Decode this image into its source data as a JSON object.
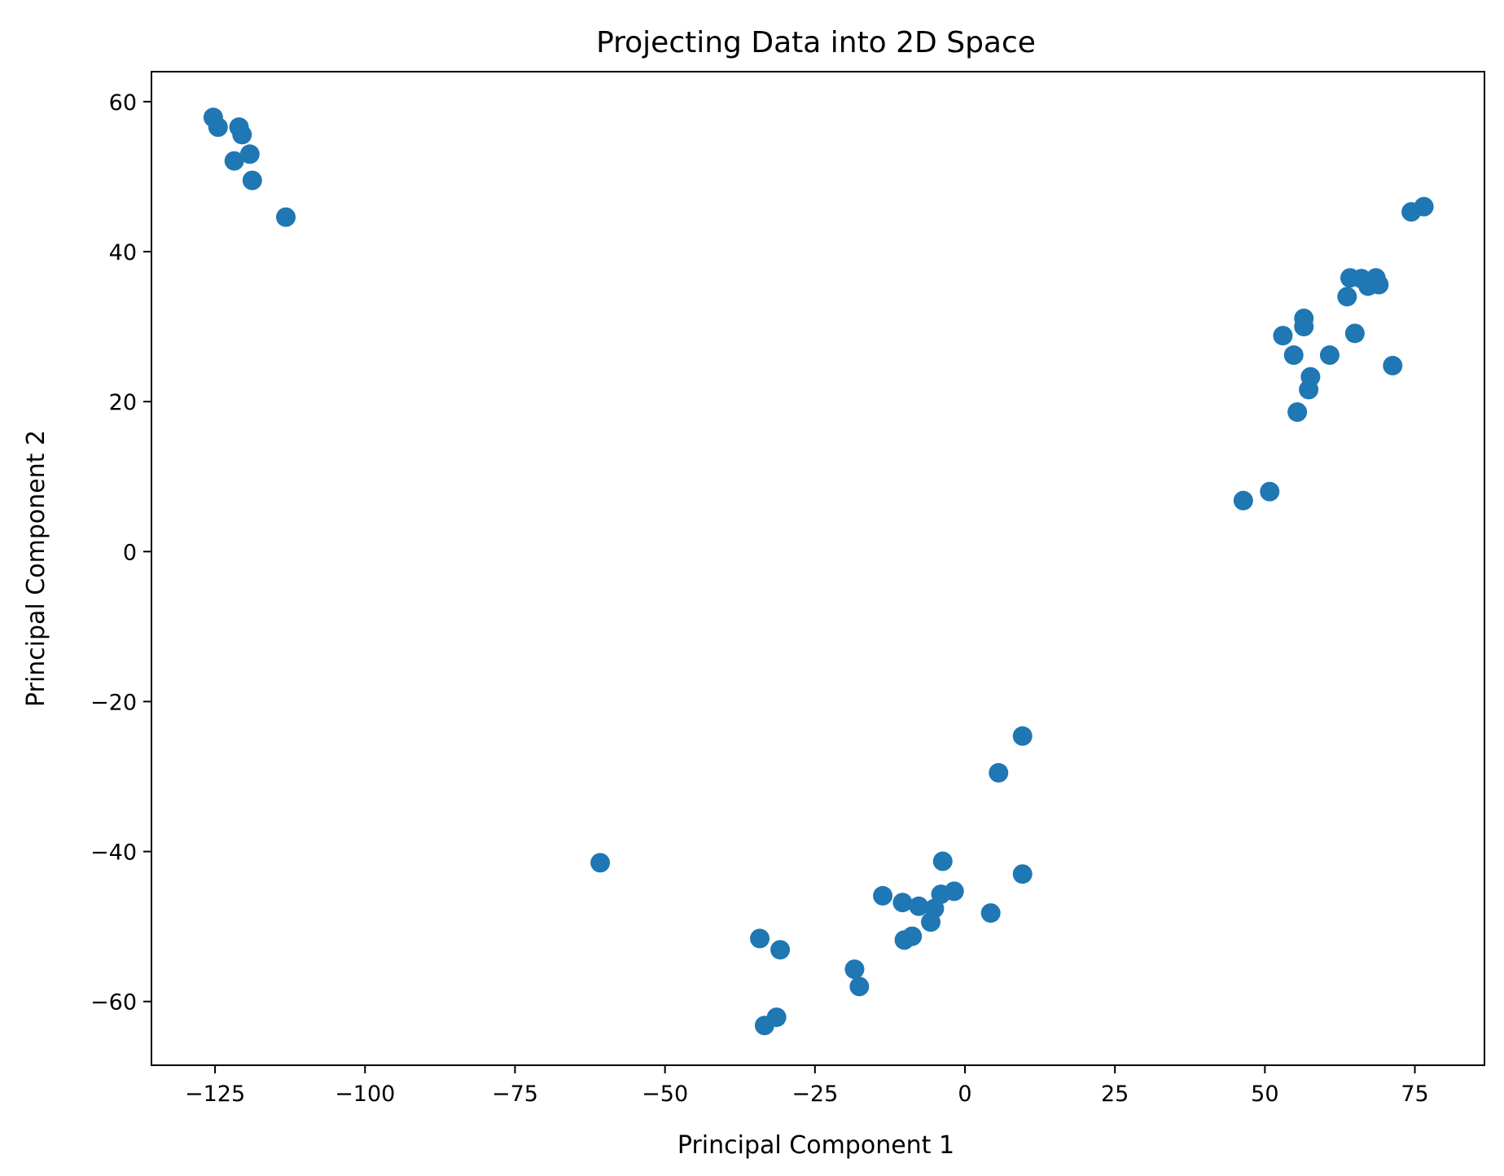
{
  "chart_data": {
    "type": "scatter",
    "title": "Projecting Data into 2D Space",
    "xlabel": "Principal Component 1",
    "ylabel": "Principal Component 2",
    "xlim": [
      -135.6,
      86.6
    ],
    "ylim": [
      -68.5,
      64.0
    ],
    "xticks": [
      -125,
      -100,
      -75,
      -50,
      -25,
      0,
      25,
      50,
      75
    ],
    "xtick_labels": [
      "−125",
      "−100",
      "−75",
      "−50",
      "−25",
      "0",
      "25",
      "50",
      "75"
    ],
    "yticks": [
      -60,
      -40,
      -20,
      0,
      20,
      40,
      60
    ],
    "ytick_labels": [
      "−60",
      "−40",
      "−20",
      "0",
      "20",
      "40",
      "60"
    ],
    "grid": false,
    "legend": null,
    "marker_color": "#1f77b4",
    "series": [
      {
        "name": "points",
        "x": [
          -125.3,
          -124.5,
          -121.0,
          -120.5,
          -121.8,
          -119.2,
          -118.8,
          -113.2,
          74.4,
          76.5,
          64.2,
          66.1,
          67.2,
          68.5,
          69.0,
          63.7,
          56.5,
          56.5,
          53.0,
          65.0,
          54.8,
          60.8,
          71.3,
          57.6,
          57.3,
          55.4,
          50.8,
          46.4,
          -60.8,
          -34.2,
          -30.8,
          -33.4,
          -31.4,
          -18.4,
          -17.6,
          -13.7,
          -10.4,
          -7.7,
          -5.1,
          -5.7,
          -4.0,
          -1.8,
          -3.7,
          -10.1,
          -8.8,
          4.3,
          9.6,
          5.6,
          9.6
        ],
        "y": [
          57.9,
          56.6,
          56.6,
          55.6,
          52.1,
          53.0,
          49.5,
          44.6,
          45.3,
          46.0,
          36.5,
          36.4,
          35.4,
          36.5,
          35.6,
          34.0,
          31.1,
          30.0,
          28.8,
          29.1,
          26.2,
          26.2,
          24.8,
          23.3,
          21.6,
          18.6,
          8.0,
          6.8,
          -41.5,
          -51.6,
          -53.1,
          -63.2,
          -62.1,
          -55.7,
          -58.0,
          -45.9,
          -46.8,
          -47.3,
          -47.6,
          -49.4,
          -45.7,
          -45.3,
          -41.3,
          -51.8,
          -51.3,
          -48.2,
          -43.0,
          -29.5,
          -24.6
        ]
      }
    ]
  }
}
